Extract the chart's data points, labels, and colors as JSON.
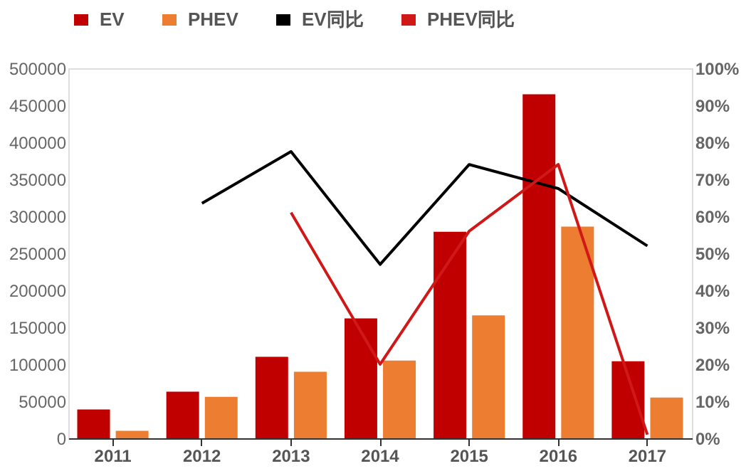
{
  "chart_data": {
    "type": "bar",
    "categories": [
      "2011",
      "2012",
      "2013",
      "2014",
      "2015",
      "2016",
      "2017"
    ],
    "series": [
      {
        "name": "EV",
        "color": "#c00000",
        "values": [
          39000,
          63000,
          110000,
          162000,
          279000,
          465000,
          104000
        ]
      },
      {
        "name": "PHEV",
        "color": "#ed7d31",
        "values": [
          10000,
          56000,
          90000,
          105000,
          166000,
          286000,
          55000
        ]
      },
      {
        "name": "EV同比",
        "type": "line",
        "axis": "y2",
        "color": "#000000",
        "values": [
          null,
          63.5,
          77.5,
          47,
          74,
          67.5,
          52
        ]
      },
      {
        "name": "PHEV同比",
        "type": "line",
        "axis": "y2",
        "color": "#d01818",
        "values": [
          null,
          null,
          61,
          20,
          56,
          74,
          1
        ]
      }
    ],
    "ylim": [
      0,
      500000
    ],
    "yticks": [
      0,
      50000,
      100000,
      150000,
      200000,
      250000,
      300000,
      350000,
      400000,
      450000,
      500000
    ],
    "y2lim": [
      0,
      100
    ],
    "y2ticks": [
      {
        "value": 0,
        "label": "0%"
      },
      {
        "value": 10,
        "label": "10%"
      },
      {
        "value": 20,
        "label": "20%"
      },
      {
        "value": 30,
        "label": "30%"
      },
      {
        "value": 40,
        "label": "40%"
      },
      {
        "value": 50,
        "label": "50%"
      },
      {
        "value": 60,
        "label": "60%"
      },
      {
        "value": 70,
        "label": "70%"
      },
      {
        "value": 80,
        "label": "80%"
      },
      {
        "value": 90,
        "label": "90%"
      },
      {
        "value": 100,
        "label": "100%"
      }
    ],
    "legend": "top",
    "grid": false
  }
}
